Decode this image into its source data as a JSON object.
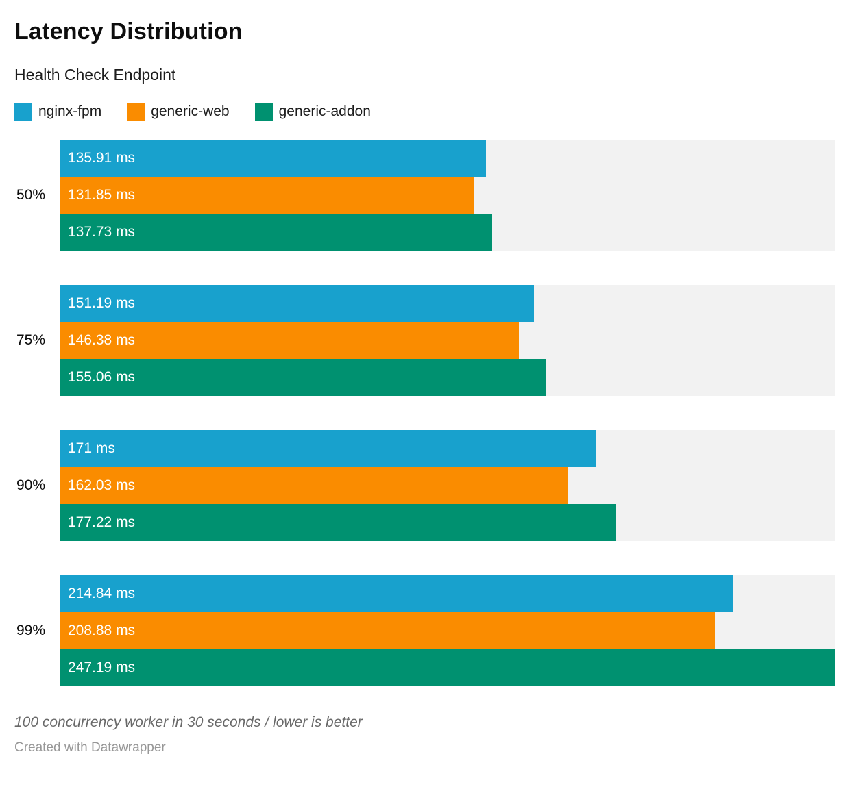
{
  "header": {
    "title": "Latency Distribution",
    "subtitle": "Health Check Endpoint"
  },
  "legend": [
    {
      "label": "nginx-fpm",
      "color": "#18a1cd"
    },
    {
      "label": "generic-web",
      "color": "#fa8c00"
    },
    {
      "label": "generic-addon",
      "color": "#009170"
    }
  ],
  "chart_data": {
    "type": "bar",
    "orientation": "horizontal",
    "title": "Latency Distribution",
    "subtitle": "Health Check Endpoint",
    "categories": [
      "50%",
      "75%",
      "90%",
      "99%"
    ],
    "series": [
      {
        "name": "nginx-fpm",
        "color": "#18a1cd",
        "values": [
          135.91,
          151.19,
          171,
          214.84
        ],
        "labels": [
          "135.91 ms",
          "151.19 ms",
          "171 ms",
          "214.84 ms"
        ]
      },
      {
        "name": "generic-web",
        "color": "#fa8c00",
        "values": [
          131.85,
          146.38,
          162.03,
          208.88
        ],
        "labels": [
          "131.85 ms",
          "146.38 ms",
          "162.03 ms",
          "208.88 ms"
        ]
      },
      {
        "name": "generic-addon",
        "color": "#009170",
        "values": [
          137.73,
          155.06,
          177.22,
          247.19
        ],
        "labels": [
          "137.73 ms",
          "155.06 ms",
          "177.22 ms",
          "247.19 ms"
        ]
      }
    ],
    "unit": "ms",
    "xlim": [
      0,
      247.19
    ],
    "grid": false,
    "legend_position": "top",
    "track_color": "#f2f2f2"
  },
  "footer": {
    "note": "100 concurrency worker in 30 seconds / lower is better",
    "byline": "Created with Datawrapper"
  }
}
